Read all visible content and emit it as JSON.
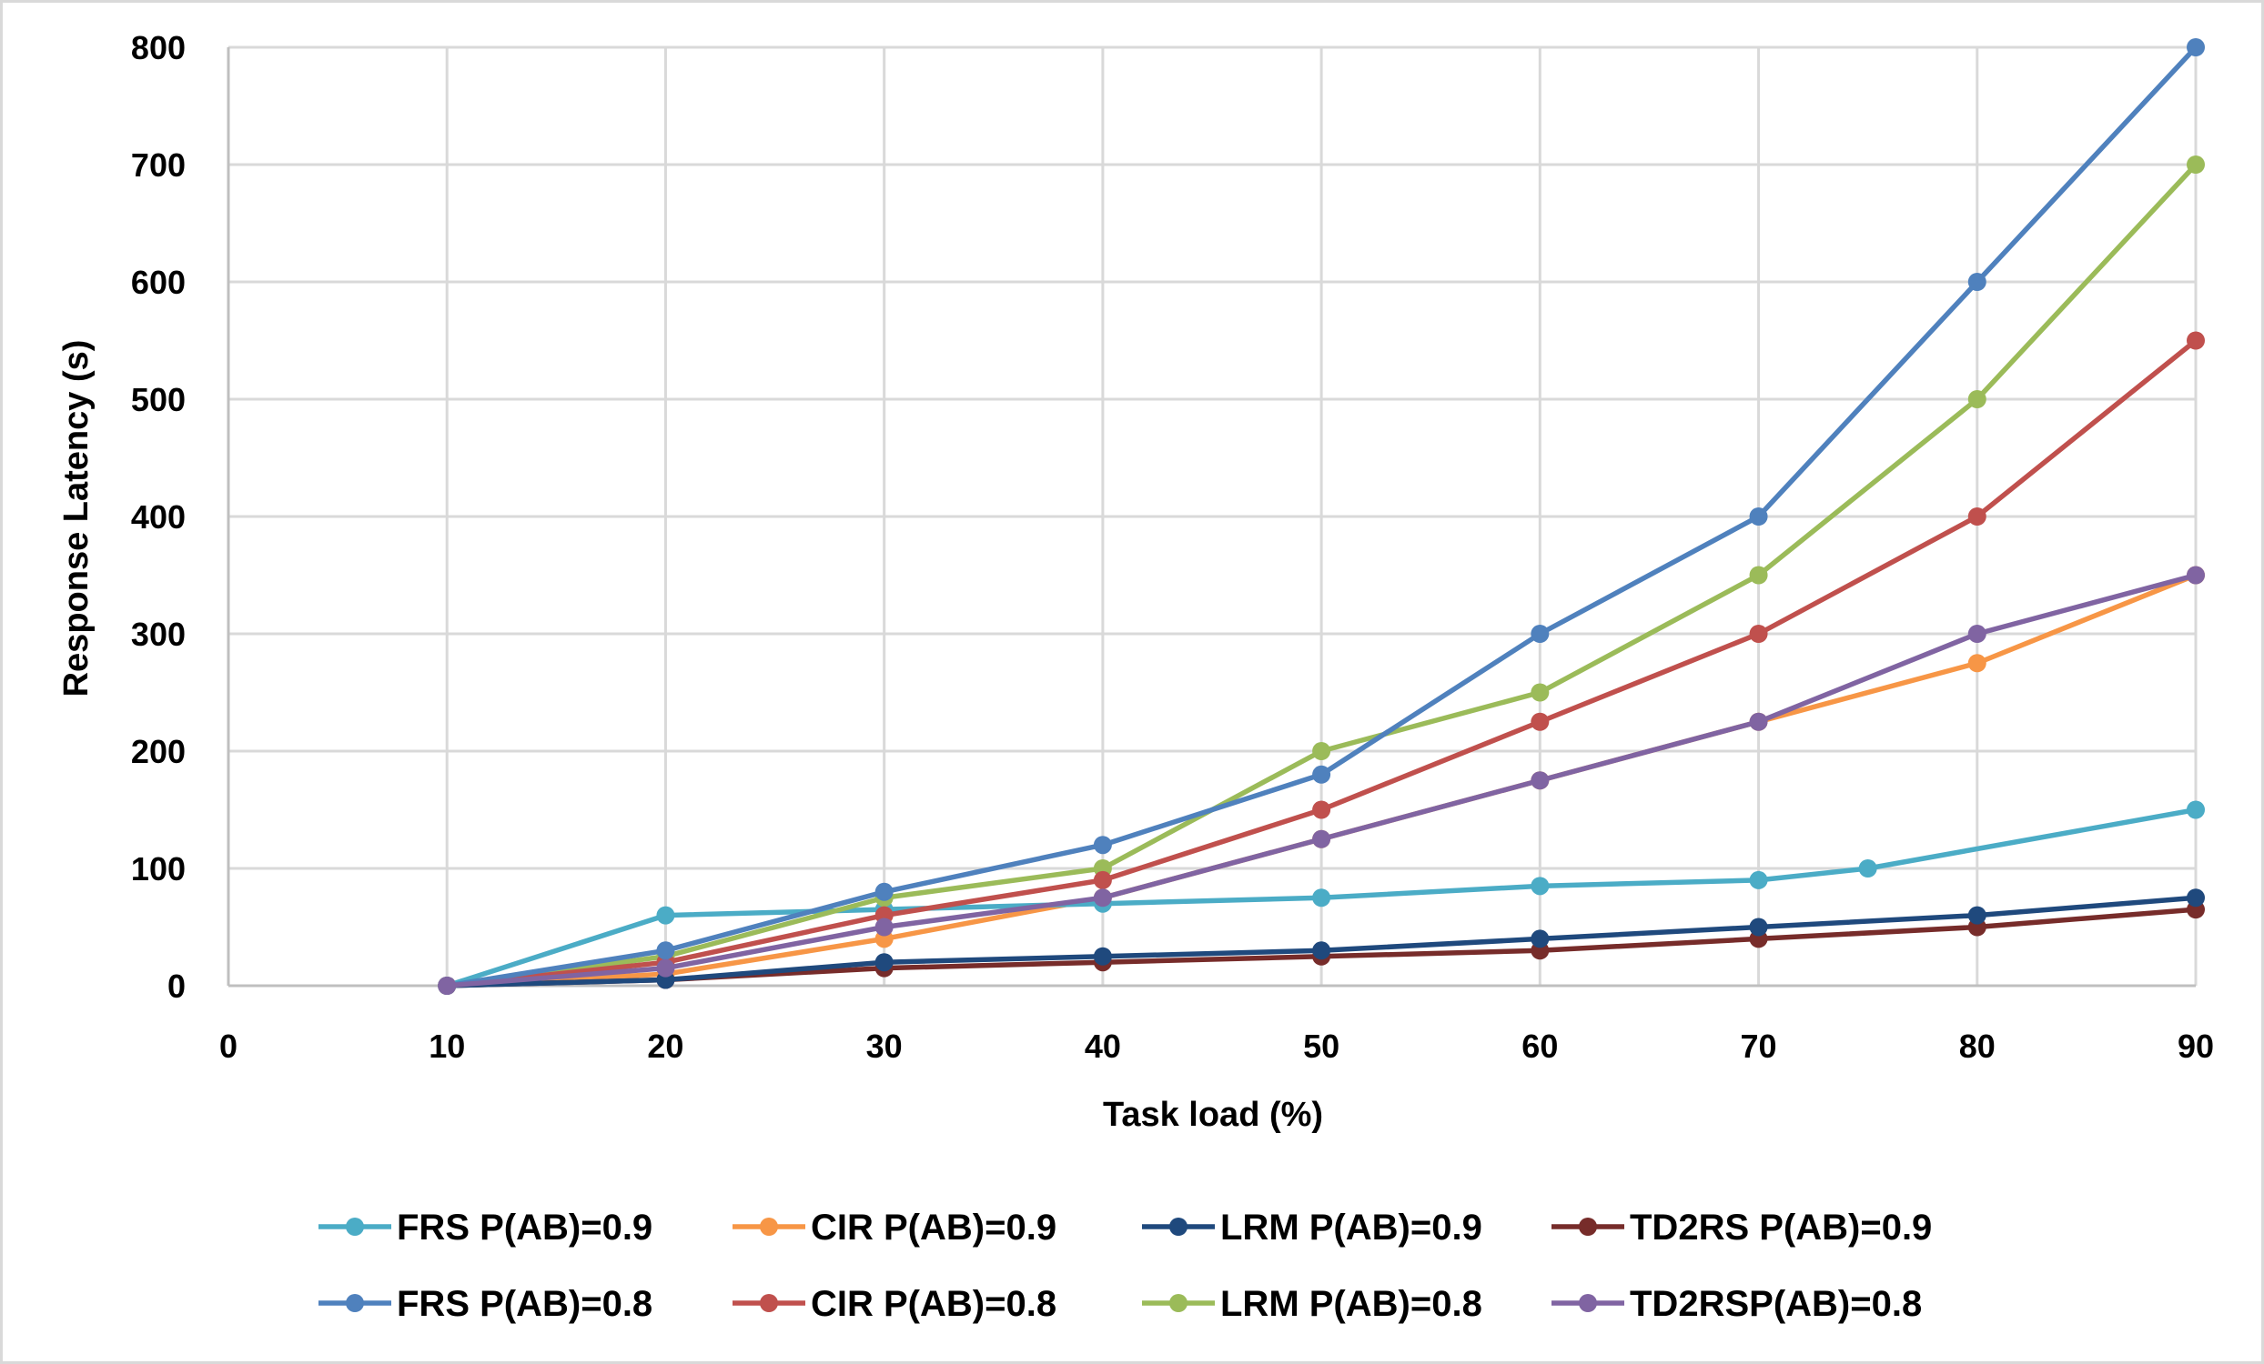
{
  "chart_data": {
    "type": "line",
    "title": "",
    "xlabel": "Task load (%)",
    "ylabel": "Response Latency (s)",
    "xlim": [
      0,
      90
    ],
    "ylim": [
      0,
      800
    ],
    "xticks": [
      0,
      10,
      20,
      30,
      40,
      50,
      60,
      70,
      80,
      90
    ],
    "yticks": [
      0,
      100,
      200,
      300,
      400,
      500,
      600,
      700,
      800
    ],
    "xtick_labels": [
      "0",
      "10",
      "20",
      "30",
      "40",
      "50",
      "60",
      "70",
      "80",
      "90"
    ],
    "ytick_labels": [
      "0",
      "100",
      "200",
      "300",
      "400",
      "500",
      "600",
      "700",
      "800"
    ],
    "grid": true,
    "legend_position": "bottom",
    "series": [
      {
        "name": "FRS P(AB)=0.9",
        "color": "#4BACC6",
        "x": [
          10,
          20,
          30,
          40,
          50,
          60,
          70,
          75,
          90
        ],
        "y": [
          0,
          60,
          65,
          70,
          75,
          85,
          90,
          100,
          150
        ]
      },
      {
        "name": "CIR P(AB)=0.9",
        "color": "#F79646",
        "x": [
          10,
          20,
          30,
          40,
          50,
          60,
          70,
          80,
          90
        ],
        "y": [
          0,
          10,
          40,
          75,
          125,
          175,
          225,
          275,
          350
        ]
      },
      {
        "name": "LRM P(AB)=0.9",
        "color": "#1F497D",
        "x": [
          10,
          20,
          30,
          40,
          50,
          60,
          70,
          80,
          90
        ],
        "y": [
          0,
          5,
          20,
          25,
          30,
          40,
          50,
          60,
          75
        ]
      },
      {
        "name": "TD2RS P(AB)=0.9",
        "color": "#772C2A",
        "x": [
          10,
          20,
          30,
          40,
          50,
          60,
          70,
          80,
          90
        ],
        "y": [
          0,
          5,
          15,
          20,
          25,
          30,
          40,
          50,
          65
        ]
      },
      {
        "name": "FRS P(AB)=0.8",
        "color": "#4F81BD",
        "x": [
          10,
          20,
          30,
          40,
          50,
          60,
          70,
          80,
          90
        ],
        "y": [
          0,
          30,
          80,
          120,
          180,
          300,
          400,
          600,
          800
        ]
      },
      {
        "name": "CIR P(AB)=0.8",
        "color": "#C0504D",
        "x": [
          10,
          20,
          30,
          40,
          50,
          60,
          70,
          80,
          90
        ],
        "y": [
          0,
          20,
          60,
          90,
          150,
          225,
          300,
          400,
          550
        ]
      },
      {
        "name": "LRM P(AB)=0.8",
        "color": "#9BBB59",
        "x": [
          10,
          20,
          30,
          40,
          50,
          60,
          70,
          80,
          90
        ],
        "y": [
          0,
          25,
          75,
          100,
          200,
          250,
          350,
          500,
          700
        ]
      },
      {
        "name": "TD2RSP(AB)=0.8",
        "color": "#8064A2",
        "x": [
          10,
          20,
          30,
          40,
          50,
          60,
          70,
          80,
          90
        ],
        "y": [
          0,
          15,
          50,
          75,
          125,
          175,
          225,
          300,
          350
        ]
      }
    ],
    "draw_order": [
      1,
      3,
      2,
      0,
      6,
      5,
      4,
      7
    ]
  }
}
